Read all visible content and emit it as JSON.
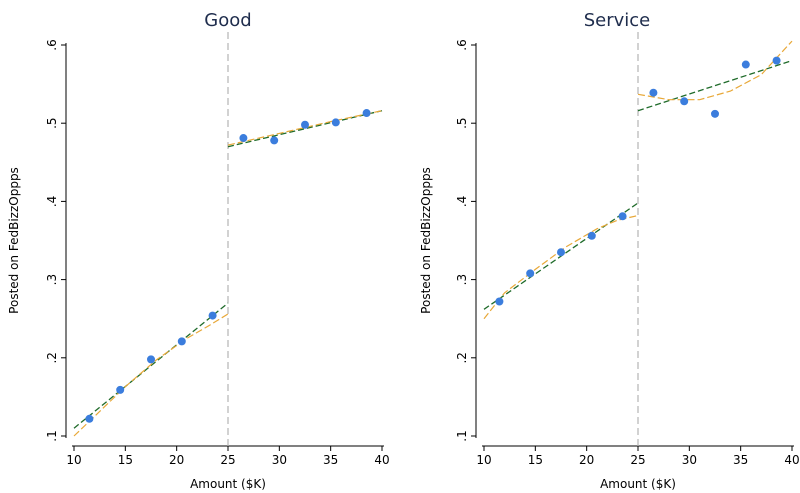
{
  "chart_data": [
    {
      "type": "scatter",
      "title": "Good",
      "xlabel": "Amount ($K)",
      "ylabel": "Posted on FedBizzOppps",
      "xlim": [
        10,
        40
      ],
      "ylim": [
        0.1,
        0.6
      ],
      "xticks": [
        10,
        15,
        20,
        25,
        30,
        35,
        40
      ],
      "yticks": [
        0.1,
        0.2,
        0.3,
        0.4,
        0.5,
        0.6
      ],
      "ytick_labels": [
        ".1",
        ".2",
        ".3",
        ".4",
        ".5",
        ".6"
      ],
      "cutoff": 25,
      "grid": false,
      "series": [
        {
          "x": [
            11.5,
            14.5,
            17.5,
            20.5,
            23.5,
            26.5,
            29.5,
            32.5,
            35.5,
            38.5
          ],
          "y": [
            0.122,
            0.159,
            0.198,
            0.221,
            0.254,
            0.481,
            0.478,
            0.498,
            0.501,
            0.513
          ]
        }
      ],
      "fit_lines": [
        {
          "style": "linear",
          "segments": [
            [
              [
                10,
                0.11
              ],
              [
                25,
                0.27
              ]
            ],
            [
              [
                25,
                0.47
              ],
              [
                40,
                0.516
              ]
            ]
          ]
        },
        {
          "style": "polynomial",
          "segments": [
            [
              [
                10,
                0.1
              ],
              [
                12,
                0.125
              ],
              [
                15,
                0.163
              ],
              [
                18,
                0.197
              ],
              [
                21,
                0.225
              ],
              [
                23,
                0.24
              ],
              [
                25,
                0.256
              ]
            ],
            [
              [
                25,
                0.472
              ],
              [
                30,
                0.487
              ],
              [
                35,
                0.502
              ],
              [
                40,
                0.516
              ]
            ]
          ]
        }
      ]
    },
    {
      "type": "scatter",
      "title": "Service",
      "xlabel": "Amount ($K)",
      "ylabel": "Posted on FedBizzOppps",
      "xlim": [
        10,
        40
      ],
      "ylim": [
        0.1,
        0.6
      ],
      "xticks": [
        10,
        15,
        20,
        25,
        30,
        35,
        40
      ],
      "yticks": [
        0.1,
        0.2,
        0.3,
        0.4,
        0.5,
        0.6
      ],
      "ytick_labels": [
        ".1",
        ".2",
        ".3",
        ".4",
        ".5",
        ".6"
      ],
      "cutoff": 25,
      "grid": false,
      "series": [
        {
          "x": [
            11.5,
            14.5,
            17.5,
            20.5,
            23.5,
            26.5,
            29.5,
            32.5,
            35.5,
            38.5
          ],
          "y": [
            0.272,
            0.308,
            0.335,
            0.356,
            0.381,
            0.539,
            0.528,
            0.512,
            0.575,
            0.58
          ]
        }
      ],
      "fit_lines": [
        {
          "style": "linear",
          "segments": [
            [
              [
                10,
                0.262
              ],
              [
                25,
                0.398
              ]
            ],
            [
              [
                25,
                0.516
              ],
              [
                40,
                0.58
              ]
            ]
          ]
        },
        {
          "style": "polynomial",
          "segments": [
            [
              [
                10,
                0.25
              ],
              [
                12,
                0.283
              ],
              [
                15,
                0.313
              ],
              [
                18,
                0.342
              ],
              [
                21,
                0.365
              ],
              [
                23,
                0.376
              ],
              [
                25,
                0.382
              ]
            ],
            [
              [
                25,
                0.537
              ],
              [
                28,
                0.53
              ],
              [
                31,
                0.53
              ],
              [
                34,
                0.541
              ],
              [
                37,
                0.562
              ],
              [
                40,
                0.605
              ]
            ]
          ]
        }
      ]
    }
  ],
  "colors": {
    "point": "#3b7ddd",
    "linear_fit": "#1f6b2a",
    "poly_fit": "#e8a838",
    "cutoff_line": "#b5b5b5",
    "title": "#1f2d4d"
  }
}
